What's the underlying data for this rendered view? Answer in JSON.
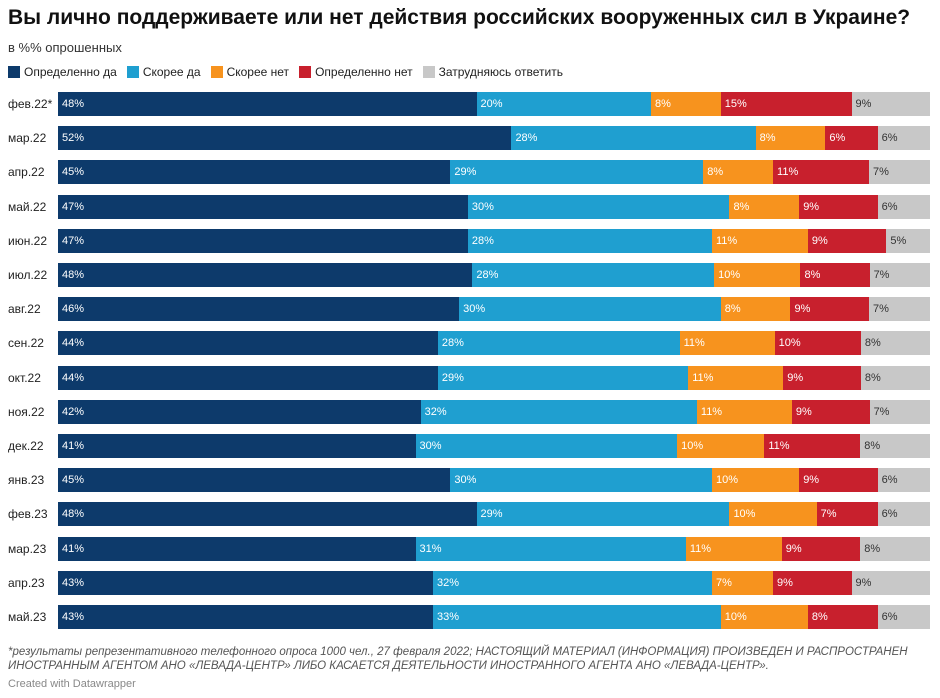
{
  "chart_data": {
    "type": "bar",
    "orientation": "horizontal",
    "stacked": true,
    "title": "Вы лично поддерживаете или нет действия российских вооруженных сил в Украине?",
    "subtitle": "в %% опрошенных",
    "xlim": [
      0,
      100
    ],
    "legend_position": "top-left",
    "categories": [
      "фев.22*",
      "мар.22",
      "апр.22",
      "май.22",
      "июн.22",
      "июл.22",
      "авг.22",
      "сен.22",
      "окт.22",
      "ноя.22",
      "дек.22",
      "янв.23",
      "фев.23",
      "мар.23",
      "апр.23",
      "май.23"
    ],
    "series": [
      {
        "name": "Определенно да",
        "color": "#0d3a6b",
        "label_color": "#ffffff",
        "values": [
          48,
          52,
          45,
          47,
          47,
          48,
          46,
          44,
          44,
          42,
          41,
          45,
          48,
          41,
          43,
          43
        ]
      },
      {
        "name": "Скорее да",
        "color": "#1f9fd0",
        "label_color": "#ffffff",
        "values": [
          20,
          28,
          29,
          30,
          28,
          28,
          30,
          28,
          29,
          32,
          30,
          30,
          29,
          31,
          32,
          33
        ]
      },
      {
        "name": "Скорее нет",
        "color": "#f7931e",
        "label_color": "#ffffff",
        "values": [
          8,
          8,
          8,
          8,
          11,
          10,
          8,
          11,
          11,
          11,
          10,
          10,
          10,
          11,
          7,
          10
        ]
      },
      {
        "name": "Определенно нет",
        "color": "#c8202d",
        "label_color": "#ffffff",
        "values": [
          15,
          6,
          11,
          9,
          9,
          8,
          9,
          10,
          9,
          9,
          11,
          9,
          7,
          9,
          9,
          8
        ]
      },
      {
        "name": "Затрудняюсь ответить",
        "color": "#c8c8c8",
        "label_color": "#333333",
        "values": [
          9,
          6,
          7,
          6,
          5,
          7,
          7,
          8,
          8,
          7,
          8,
          6,
          6,
          8,
          9,
          6
        ]
      }
    ],
    "value_suffix": "%"
  },
  "footnote": "*результаты репрезентативного телефонного опроса 1000 чел., 27 февраля 2022; НАСТОЯЩИЙ МАТЕРИАЛ (ИНФОРМАЦИЯ) ПРОИЗВЕДЕН И РАСПРОСТРАНЕН ИНОСТРАННЫМ АГЕНТОМ АНО «ЛЕВАДА-ЦЕНТР» ЛИБО КАСАЕТСЯ ДЕЯТЕЛЬНОСТИ ИНОСТРАННОГО АГЕНТА АНО «ЛЕВАДА-ЦЕНТР».",
  "credit": "Created with Datawrapper"
}
